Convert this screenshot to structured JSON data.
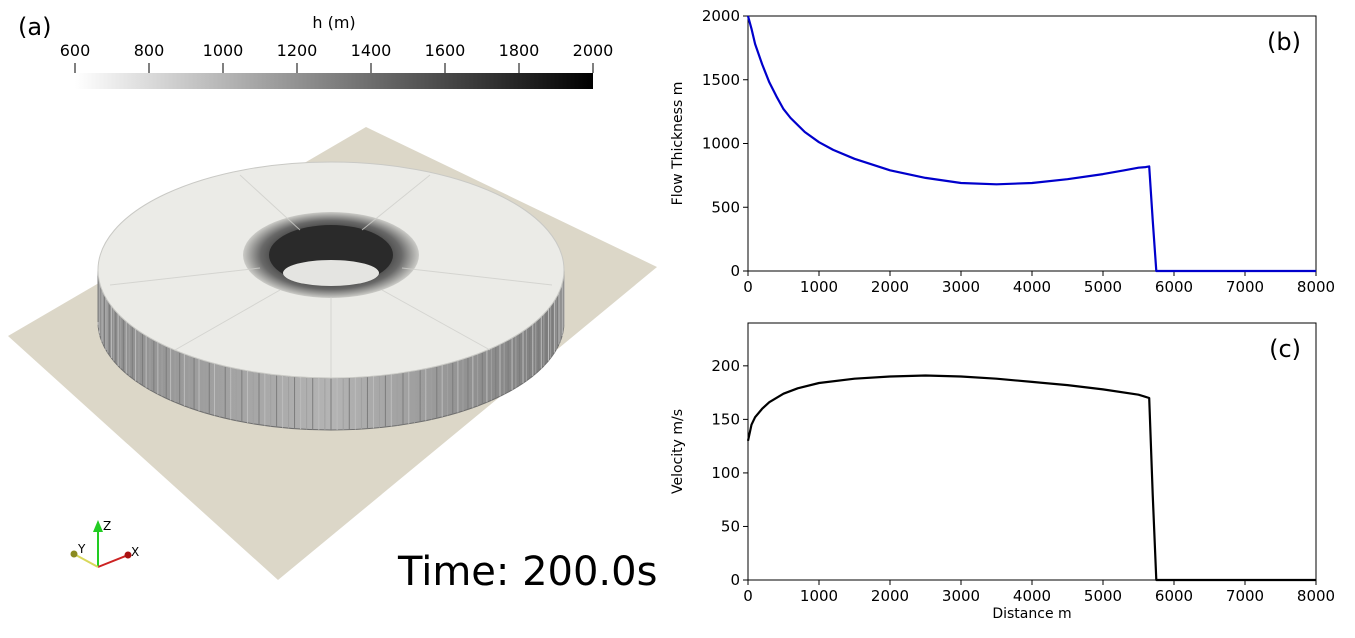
{
  "panel_a": {
    "label": "(a)",
    "colorbar": {
      "title": "h (m)",
      "ticks": [
        "600",
        "800",
        "1000",
        "1200",
        "1400",
        "1600",
        "1800",
        "2000"
      ],
      "colors": [
        "#ffffff",
        "#000000"
      ]
    },
    "time_label": "Time: 200.0s",
    "axes_triad": {
      "x": "X",
      "y": "Y",
      "z": "Z"
    },
    "colors": {
      "ground": "#dcd7c8",
      "deposit_top": "#ebebe7",
      "deposit_side": "#a9a9a9"
    }
  },
  "chart_data": [
    {
      "type": "line",
      "panel_label": "(b)",
      "title": "",
      "xlabel": "",
      "ylabel": "Flow Thickness m",
      "xlim": [
        0,
        8000
      ],
      "ylim": [
        0,
        2000
      ],
      "xticks": [
        "0",
        "1000",
        "2000",
        "3000",
        "4000",
        "5000",
        "6000",
        "7000",
        "8000"
      ],
      "yticks": [
        "0",
        "500",
        "1000",
        "1500",
        "2000"
      ],
      "grid": false,
      "series": [
        {
          "color": "#0000cc",
          "x": [
            0,
            50,
            100,
            200,
            300,
            400,
            500,
            600,
            800,
            1000,
            1200,
            1500,
            2000,
            2500,
            3000,
            3500,
            4000,
            4500,
            5000,
            5300,
            5500,
            5600,
            5650,
            5700,
            5750,
            5800,
            6000,
            7000,
            8000
          ],
          "y": [
            2000,
            1900,
            1780,
            1620,
            1480,
            1370,
            1270,
            1200,
            1090,
            1010,
            950,
            880,
            790,
            730,
            690,
            680,
            690,
            720,
            760,
            790,
            810,
            815,
            820,
            400,
            0,
            0,
            0,
            0,
            0
          ]
        }
      ]
    },
    {
      "type": "line",
      "panel_label": "(c)",
      "title": "",
      "xlabel": "Distance m",
      "ylabel": "Velocity m/s",
      "xlim": [
        0,
        8000
      ],
      "ylim": [
        0,
        240
      ],
      "xticks": [
        "0",
        "1000",
        "2000",
        "3000",
        "4000",
        "5000",
        "6000",
        "7000",
        "8000"
      ],
      "yticks": [
        "0",
        "50",
        "100",
        "150",
        "200"
      ],
      "grid": false,
      "series": [
        {
          "color": "#000000",
          "x": [
            0,
            50,
            100,
            200,
            300,
            500,
            700,
            1000,
            1500,
            2000,
            2500,
            3000,
            3500,
            4000,
            4500,
            5000,
            5500,
            5650,
            5700,
            5750,
            5800,
            6000,
            7000,
            8000
          ],
          "y": [
            130,
            145,
            152,
            160,
            166,
            174,
            179,
            184,
            188,
            190,
            191,
            190,
            188,
            185,
            182,
            178,
            173,
            170,
            80,
            0,
            0,
            0,
            0,
            0
          ]
        }
      ]
    }
  ]
}
